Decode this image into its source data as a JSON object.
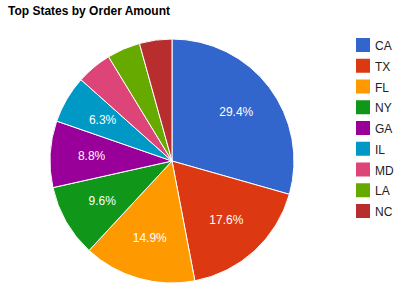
{
  "chart_data": {
    "type": "pie",
    "title": "Top States by Order Amount",
    "categories": [
      "CA",
      "TX",
      "FL",
      "NY",
      "GA",
      "IL",
      "MD",
      "LA",
      "NC"
    ],
    "values": [
      29.4,
      17.6,
      14.9,
      9.6,
      8.8,
      6.3,
      4.7,
      4.4,
      4.3
    ],
    "value_labels": [
      "29.4%",
      "17.6%",
      "14.9%",
      "9.6%",
      "8.8%",
      "6.3%",
      null,
      null,
      null
    ],
    "colors": [
      "#3366cc",
      "#dc3912",
      "#ff9900",
      "#109618",
      "#990099",
      "#0099c6",
      "#dd4477",
      "#66aa00",
      "#b82e2e"
    ],
    "data_labels": true,
    "legend": "right"
  }
}
